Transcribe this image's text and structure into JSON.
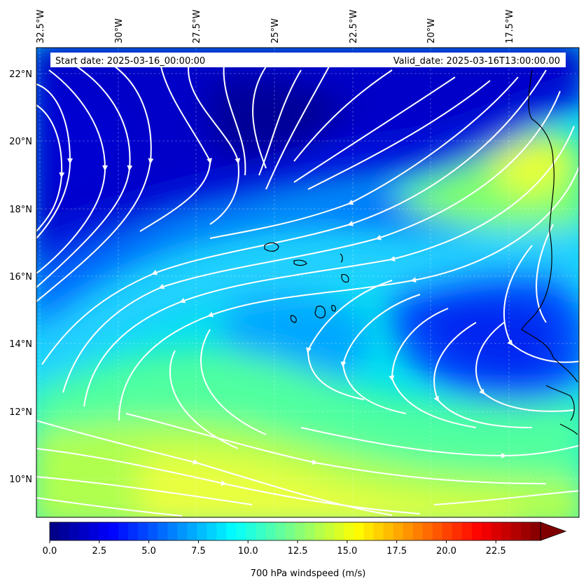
{
  "map": {
    "variable": "700 hPa windspeed (m/s)",
    "start_date_text": "Start date: 2025-03-16_00:00:00",
    "valid_date_text": "Valid_date: 2025-03-16T13:00:00.00",
    "lon_labels": [
      "32.5°W",
      "30°W",
      "27.5°W",
      "25°W",
      "22.5°W",
      "20°W",
      "17.5°W"
    ],
    "lat_labels": [
      "22°N",
      "20°N",
      "18°N",
      "16°N",
      "14°N",
      "12°N",
      "10°N"
    ],
    "extent": {
      "lon_min": -33.0,
      "lon_max": -15.5,
      "lat_min": 9.0,
      "lat_max": 22.7
    },
    "gridlines": true,
    "streamline_color": "#ffffff",
    "coastline_color": "#000000",
    "features": [
      "Cape Verde islands",
      "West African coast"
    ]
  },
  "colorbar": {
    "min": 0.0,
    "max": 25.0,
    "extend": "max",
    "ticks": [
      0.0,
      2.5,
      5.0,
      7.5,
      10.0,
      12.5,
      15.0,
      17.5,
      20.0,
      22.5
    ],
    "tick_labels": [
      "0.0",
      "2.5",
      "5.0",
      "7.5",
      "10.0",
      "12.5",
      "15.0",
      "17.5",
      "20.0",
      "22.5"
    ],
    "levels": 50,
    "colormap": "jet",
    "label": "700 hPa windspeed (m/s)"
  }
}
